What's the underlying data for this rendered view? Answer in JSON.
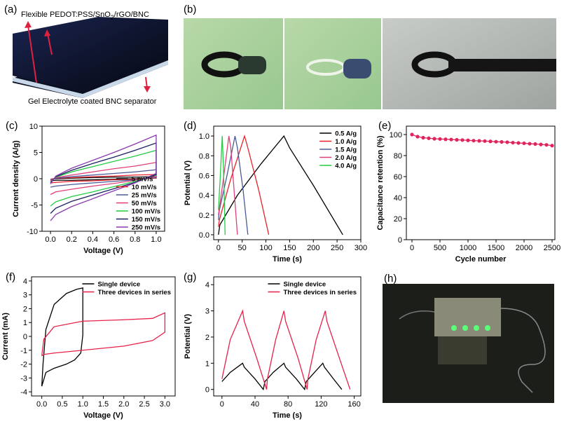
{
  "figure": {
    "panel_a": {
      "label": "(a)",
      "title_parts": [
        "Flexible PEDOT:PSS/SnO",
        "2",
        "/rGO/BNC"
      ],
      "bottom_text": "Gel Electrolyte coated BNC separator"
    },
    "panel_b": {
      "label": "(b)"
    },
    "panel_h": {
      "label": "(h)"
    }
  },
  "chart_data": [
    {
      "type": "line",
      "panel_label": "(c)",
      "x_label": "Voltage (V)",
      "y_label": "Current density (A/g)",
      "xlim": [
        -0.08,
        1.08
      ],
      "ylim": [
        -10,
        10
      ],
      "xticks": [
        {
          "value": 0,
          "label": "0.0"
        },
        {
          "value": 0.2,
          "label": "0.2"
        },
        {
          "value": 0.4,
          "label": "0.4"
        },
        {
          "value": 0.6,
          "label": "0.6"
        },
        {
          "value": 0.8,
          "label": "0.8"
        },
        {
          "value": 1,
          "label": "1.0"
        }
      ],
      "yticks": [
        -10,
        -5,
        0,
        5,
        10
      ],
      "legend": "lower right",
      "series": [
        {
          "name": "5 mV/s",
          "color": "#000000",
          "x": [
            0,
            0.05,
            0.2,
            0.4,
            0.6,
            0.8,
            1.0,
            1.0,
            0.8,
            0.6,
            0.4,
            0.2,
            0.05,
            0
          ],
          "values": [
            -0.1,
            0.0,
            0.1,
            0.2,
            0.3,
            0.3,
            0.4,
            0.1,
            0.0,
            -0.1,
            -0.2,
            -0.3,
            -0.3,
            -0.4
          ]
        },
        {
          "name": "10 mV/s",
          "color": "#e8202a",
          "x": [
            0,
            0.05,
            0.2,
            0.4,
            0.6,
            0.8,
            1.0,
            1.0,
            0.8,
            0.6,
            0.4,
            0.2,
            0.05,
            0
          ],
          "values": [
            -0.1,
            0.1,
            0.2,
            0.4,
            0.5,
            0.7,
            0.8,
            0.1,
            -0.1,
            -0.2,
            -0.4,
            -0.5,
            -0.7,
            -0.8
          ]
        },
        {
          "name": "25 mV/s",
          "color": "#4a5a9a",
          "x": [
            0,
            0.05,
            0.2,
            0.4,
            0.6,
            0.8,
            1.0,
            1.0,
            0.8,
            0.6,
            0.4,
            0.2,
            0.05,
            0
          ],
          "values": [
            -0.2,
            0.1,
            0.4,
            0.7,
            1.0,
            1.3,
            1.7,
            0.2,
            -0.2,
            -0.5,
            -0.8,
            -1.1,
            -1.4,
            -1.6
          ]
        },
        {
          "name": "50 mV/s",
          "color": "#e0407a",
          "x": [
            0,
            0.05,
            0.2,
            0.4,
            0.6,
            0.8,
            1.0,
            1.0,
            0.8,
            0.6,
            0.4,
            0.2,
            0.05,
            0
          ],
          "values": [
            -0.4,
            0.2,
            0.7,
            1.3,
            1.9,
            2.4,
            3.1,
            0.4,
            -0.3,
            -0.9,
            -1.4,
            -2.0,
            -2.5,
            -3.0
          ]
        },
        {
          "name": "100 mV/s",
          "color": "#22cc44",
          "x": [
            0,
            0.05,
            0.2,
            0.4,
            0.6,
            0.8,
            1.0,
            1.0,
            0.8,
            0.6,
            0.4,
            0.2,
            0.05,
            0
          ],
          "values": [
            -0.7,
            0.3,
            1.3,
            2.3,
            3.3,
            4.3,
            5.4,
            0.7,
            -0.5,
            -1.5,
            -2.5,
            -3.4,
            -4.4,
            -5.2
          ]
        },
        {
          "name": "150 mV/s",
          "color": "#1a2060",
          "x": [
            0,
            0.05,
            0.2,
            0.4,
            0.6,
            0.8,
            1.0,
            1.0,
            0.8,
            0.6,
            0.4,
            0.2,
            0.05,
            0
          ],
          "values": [
            -0.8,
            0.4,
            1.6,
            2.9,
            4.1,
            5.4,
            6.8,
            0.8,
            -0.7,
            -1.9,
            -3.1,
            -4.3,
            -5.6,
            -6.6
          ]
        },
        {
          "name": "250 mV/s",
          "color": "#8a3ab0",
          "x": [
            0,
            0.05,
            0.2,
            0.4,
            0.6,
            0.8,
            1.0,
            1.0,
            0.8,
            0.6,
            0.4,
            0.2,
            0.05,
            0
          ],
          "values": [
            -1.0,
            0.5,
            2.0,
            3.5,
            5.0,
            6.6,
            8.3,
            1.0,
            -0.8,
            -2.3,
            -3.8,
            -5.3,
            -6.8,
            -8.0
          ]
        }
      ]
    },
    {
      "type": "line",
      "panel_label": "(d)",
      "x_label": "Time (s)",
      "y_label": "Potential (V)",
      "xlim": [
        -10,
        300
      ],
      "ylim": [
        -0.05,
        1.1
      ],
      "xticks": [
        0,
        50,
        100,
        150,
        200,
        250,
        300
      ],
      "yticks": [
        {
          "value": 0,
          "label": "0.0"
        },
        {
          "value": 0.2,
          "label": "0.2"
        },
        {
          "value": 0.4,
          "label": "0.4"
        },
        {
          "value": 0.6,
          "label": "0.6"
        },
        {
          "value": 0.8,
          "label": "0.8"
        },
        {
          "value": 1,
          "label": "1.0"
        }
      ],
      "legend": "upper right",
      "series": [
        {
          "name": "0.5 A/g",
          "color": "#000000",
          "x": [
            0,
            3,
            40,
            90,
            138,
            150,
            200,
            262
          ],
          "values": [
            0,
            0.1,
            0.4,
            0.72,
            1.0,
            0.88,
            0.5,
            0
          ]
        },
        {
          "name": "1.0 A/g",
          "color": "#e8202a",
          "x": [
            0,
            2,
            25,
            55,
            62,
            85,
            106
          ],
          "values": [
            0.08,
            0.15,
            0.55,
            1.0,
            0.88,
            0.45,
            0
          ]
        },
        {
          "name": "1.5 A/g",
          "color": "#4a5a9a",
          "x": [
            0,
            2,
            18,
            35,
            40,
            52,
            62
          ],
          "values": [
            0.15,
            0.25,
            0.6,
            1.0,
            0.88,
            0.45,
            0
          ]
        },
        {
          "name": "2.0 A/g",
          "color": "#e0407a",
          "x": [
            0,
            10,
            22,
            26,
            33,
            40
          ],
          "values": [
            0.2,
            0.55,
            1.0,
            0.88,
            0.45,
            0
          ]
        },
        {
          "name": "4.0 A/g",
          "color": "#22cc44",
          "x": [
            0,
            4,
            8,
            9,
            12,
            14
          ],
          "values": [
            0.25,
            0.6,
            1.0,
            0.88,
            0.45,
            0
          ]
        }
      ]
    },
    {
      "type": "line",
      "panel_label": "(e)",
      "x_label": "Cycle number",
      "y_label": "Capacitance retention (%)",
      "xlim": [
        -100,
        2550
      ],
      "ylim": [
        0,
        108
      ],
      "markers": true,
      "xticks": [
        0,
        500,
        1000,
        1500,
        2000,
        2500
      ],
      "yticks": [
        0,
        20,
        40,
        60,
        80,
        100
      ],
      "series": [
        {
          "color": "#e0245e",
          "x": [
            0,
            100,
            200,
            300,
            400,
            500,
            600,
            700,
            800,
            900,
            1000,
            1100,
            1200,
            1300,
            1400,
            1500,
            1600,
            1700,
            1800,
            1900,
            2000,
            2100,
            2200,
            2300,
            2400,
            2500
          ],
          "values": [
            100,
            98,
            97,
            96.5,
            96,
            95.8,
            95.5,
            95.3,
            95,
            94.8,
            94.5,
            94.2,
            94,
            93.8,
            93.5,
            93.2,
            93,
            92.7,
            92.3,
            92,
            91.7,
            91.3,
            91,
            90.6,
            90.2,
            89.5
          ]
        }
      ]
    },
    {
      "type": "line",
      "panel_label": "(f)",
      "x_label": "Voltage (V)",
      "y_label": "Current (mA)",
      "xlim": [
        -0.25,
        3.25
      ],
      "ylim": [
        -4.3,
        4.3
      ],
      "xticks": [
        {
          "value": 0,
          "label": "0.0"
        },
        {
          "value": 0.5,
          "label": "0.5"
        },
        {
          "value": 1,
          "label": "1.0"
        },
        {
          "value": 1.5,
          "label": "1.5"
        },
        {
          "value": 2,
          "label": "2.0"
        },
        {
          "value": 2.5,
          "label": "2.5"
        },
        {
          "value": 3,
          "label": "3.0"
        }
      ],
      "yticks": [
        -4,
        -3,
        -2,
        -1,
        0,
        1,
        2,
        3,
        4
      ],
      "legend": "upper right",
      "series": [
        {
          "name": "Single device",
          "color": "#000000",
          "x": [
            0,
            0.03,
            0.1,
            0.3,
            0.6,
            0.85,
            1.0,
            1.0,
            0.95,
            0.8,
            0.6,
            0.3,
            0.1,
            0
          ],
          "values": [
            -3.6,
            -2,
            0.5,
            2.3,
            3.1,
            3.4,
            3.5,
            0.1,
            -1.2,
            -1.7,
            -2.0,
            -2.3,
            -2.6,
            -3.6
          ]
        },
        {
          "name": "Three devices in series",
          "color": "#e8204a",
          "x": [
            0,
            0.05,
            0.3,
            1,
            2,
            2.7,
            3,
            3,
            2.7,
            2,
            1,
            0.3,
            0.05,
            0
          ],
          "values": [
            -1.4,
            -0.2,
            0.7,
            1.1,
            1.2,
            1.3,
            1.7,
            0.3,
            -0.3,
            -0.7,
            -1.0,
            -1.2,
            -1.3,
            -1.4
          ]
        }
      ]
    },
    {
      "type": "line",
      "panel_label": "(g)",
      "x_label": "Time (s)",
      "y_label": "Potential (V)",
      "xlim": [
        -10,
        168
      ],
      "ylim": [
        -0.25,
        4.3
      ],
      "xticks": [
        0,
        40,
        80,
        120,
        160
      ],
      "yticks": [
        0,
        1,
        2,
        3,
        4
      ],
      "legend": "upper right",
      "series": [
        {
          "name": "Single device",
          "color": "#000000",
          "x": [
            0,
            10,
            25,
            27,
            40,
            50,
            52,
            62,
            75,
            77,
            90,
            100,
            102,
            112,
            122,
            124,
            135,
            145
          ],
          "values": [
            0.3,
            0.65,
            1.0,
            0.85,
            0.4,
            0,
            0.3,
            0.65,
            1.0,
            0.85,
            0.4,
            0,
            0.3,
            0.65,
            1.0,
            0.85,
            0.4,
            0
          ]
        },
        {
          "name": "Three devices in series",
          "color": "#e8204a",
          "x": [
            0,
            10,
            25,
            27,
            42,
            54,
            55,
            65,
            75,
            77,
            92,
            103,
            104,
            114,
            125,
            127,
            142,
            155
          ],
          "values": [
            0.4,
            1.9,
            3.0,
            2.6,
            1.2,
            0,
            0.4,
            1.9,
            3.0,
            2.6,
            1.2,
            0,
            0.4,
            1.9,
            3.0,
            2.6,
            1.2,
            0
          ]
        }
      ]
    }
  ]
}
